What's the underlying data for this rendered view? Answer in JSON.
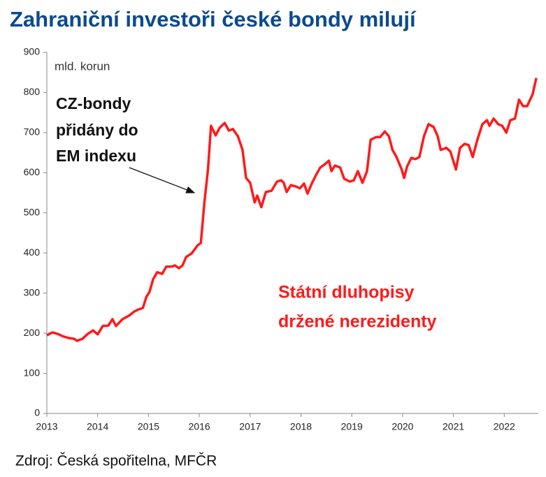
{
  "chart_data": {
    "type": "line",
    "title": "Zahraniční investoři české bondy milují",
    "unit_label": "mld. korun",
    "annotation": [
      "CZ-bondy",
      "přidány do",
      "EM indexu"
    ],
    "series_label": [
      "Státní dluhopisy",
      "držené nerezidenty"
    ],
    "source": "Zdroj: Česká spořitelna, MFČR",
    "xlim": [
      2013,
      2022.67
    ],
    "xticks": [
      2013,
      2014,
      2015,
      2016,
      2017,
      2018,
      2019,
      2020,
      2021,
      2022
    ],
    "ylim": [
      0,
      900
    ],
    "yticks": [
      0,
      100,
      200,
      300,
      400,
      500,
      600,
      700,
      800,
      900
    ],
    "x": [
      2013.0,
      2013.11,
      2013.22,
      2013.32,
      2013.43,
      2013.54,
      2013.59,
      2013.7,
      2013.8,
      2013.91,
      2014.0,
      2014.1,
      2014.21,
      2014.29,
      2014.36,
      2014.49,
      2014.62,
      2014.72,
      2014.8,
      2014.89,
      2014.96,
      2015.02,
      2015.09,
      2015.17,
      2015.27,
      2015.35,
      2015.46,
      2015.52,
      2015.6,
      2015.67,
      2015.74,
      2015.85,
      2015.96,
      2016.03,
      2016.1,
      2016.17,
      2016.23,
      2016.32,
      2016.4,
      2016.5,
      2016.58,
      2016.66,
      2016.76,
      2016.85,
      2016.92,
      2017.0,
      2017.09,
      2017.14,
      2017.22,
      2017.31,
      2017.42,
      2017.53,
      2017.61,
      2017.66,
      2017.72,
      2017.8,
      2017.9,
      2017.98,
      2018.06,
      2018.13,
      2018.22,
      2018.3,
      2018.38,
      2018.46,
      2018.55,
      2018.6,
      2018.67,
      2018.77,
      2018.85,
      2018.96,
      2019.04,
      2019.12,
      2019.21,
      2019.3,
      2019.37,
      2019.48,
      2019.56,
      2019.65,
      2019.73,
      2019.8,
      2019.88,
      2019.98,
      2020.03,
      2020.09,
      2020.17,
      2020.25,
      2020.33,
      2020.42,
      2020.51,
      2020.61,
      2020.69,
      2020.75,
      2020.86,
      2020.94,
      2021.05,
      2021.13,
      2021.22,
      2021.3,
      2021.38,
      2021.47,
      2021.57,
      2021.66,
      2021.71,
      2021.79,
      2021.88,
      2021.96,
      2022.04,
      2022.12,
      2022.21,
      2022.29,
      2022.37,
      2022.45,
      2022.56,
      2022.63
    ],
    "series": [
      {
        "color": "#ff1a1a",
        "values": [
          195,
          202,
          198,
          192,
          188,
          186,
          181,
          186,
          198,
          207,
          197,
          218,
          219,
          235,
          218,
          235,
          244,
          254,
          259,
          263,
          291,
          303,
          334,
          352,
          348,
          366,
          366,
          369,
          362,
          369,
          390,
          399,
          418,
          425,
          526,
          608,
          717,
          693,
          712,
          724,
          705,
          709,
          691,
          657,
          587,
          575,
          526,
          543,
          514,
          552,
          555,
          578,
          581,
          575,
          552,
          569,
          566,
          561,
          573,
          548,
          575,
          595,
          613,
          620,
          630,
          604,
          618,
          613,
          585,
          578,
          581,
          604,
          575,
          604,
          682,
          689,
          689,
          703,
          691,
          657,
          639,
          609,
          587,
          616,
          637,
          634,
          639,
          691,
          721,
          714,
          691,
          657,
          662,
          653,
          608,
          662,
          672,
          669,
          639,
          682,
          721,
          731,
          717,
          735,
          721,
          717,
          700,
          731,
          735,
          782,
          766,
          766,
          796,
          836
        ]
      }
    ]
  }
}
